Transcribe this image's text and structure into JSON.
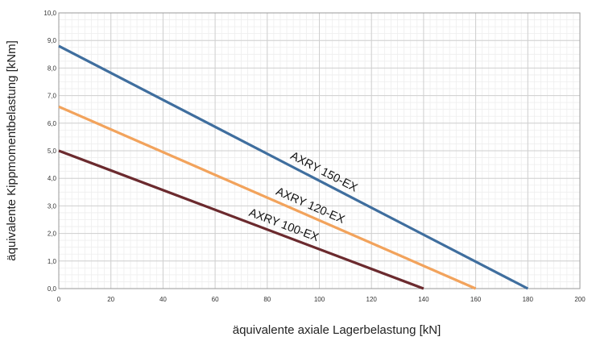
{
  "chart_data": {
    "type": "line",
    "title": "",
    "xlabel": "äquivalente axiale Lagerbelastung [kN]",
    "ylabel": "äquivalente Kippmomentbelastung [kNm]",
    "xlim": [
      0,
      200
    ],
    "ylim": [
      0,
      10
    ],
    "x_ticks": [
      "0",
      "20",
      "40",
      "60",
      "80",
      "100",
      "120",
      "140",
      "160",
      "180",
      "200"
    ],
    "y_ticks": [
      "0,0",
      "1,0",
      "2,0",
      "3,0",
      "4,0",
      "5,0",
      "6,0",
      "7,0",
      "8,0",
      "9,0",
      "10,0"
    ],
    "grid": true,
    "legend": "none",
    "series": [
      {
        "name": "AXRY 150-EX",
        "x": [
          0,
          180
        ],
        "y": [
          8.8,
          0
        ],
        "color": "#3f6e9e"
      },
      {
        "name": "AXRY 120-EX",
        "x": [
          0,
          160
        ],
        "y": [
          6.6,
          0
        ],
        "color": "#f2a35c"
      },
      {
        "name": "AXRY 100-EX",
        "x": [
          0,
          140
        ],
        "y": [
          5.0,
          0
        ],
        "color": "#6b2a2e"
      }
    ]
  }
}
